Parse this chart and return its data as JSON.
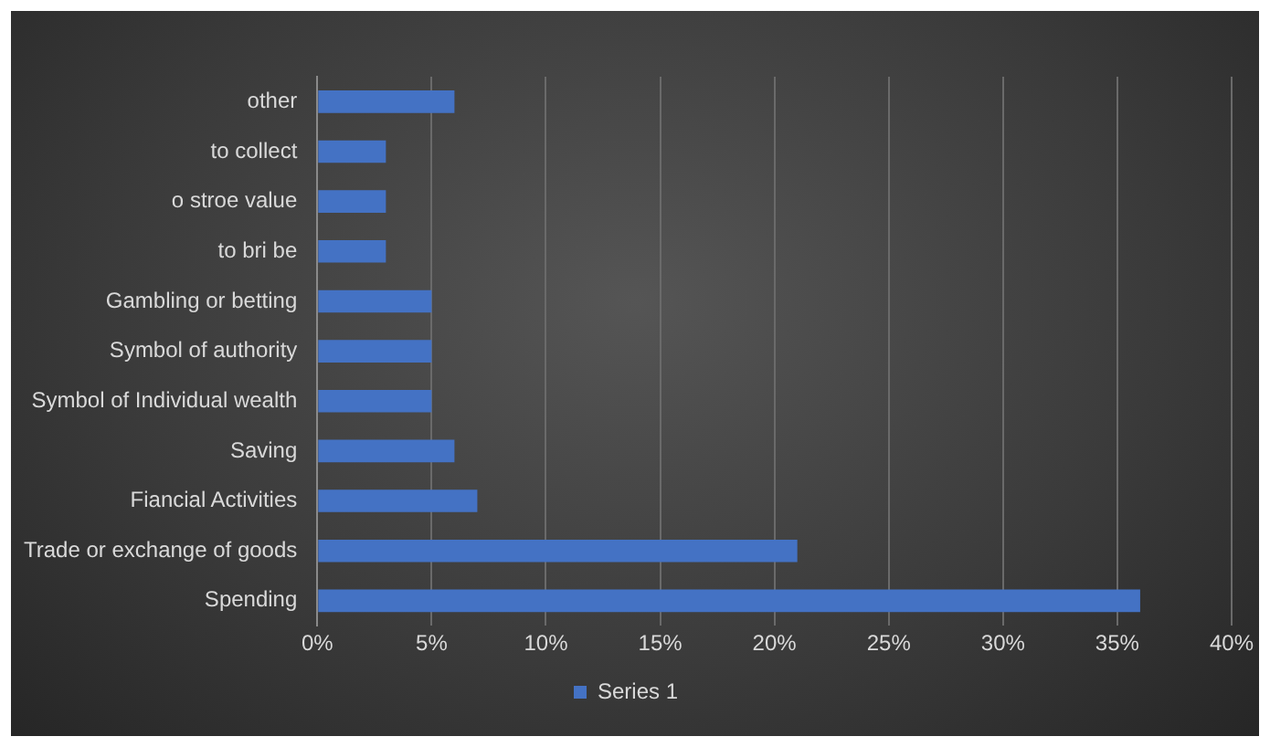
{
  "chart_data": {
    "type": "bar",
    "orientation": "horizontal",
    "categories": [
      "other",
      "to collect",
      "o stroe value",
      "to bri be",
      "Gambling or betting",
      "Symbol of authority",
      "Symbol of Individual wealth",
      "Saving",
      "Fiancial Activities",
      "Trade or exchange of goods",
      "Spending"
    ],
    "series": [
      {
        "name": "Series 1",
        "color": "#4472c4",
        "values": [
          6,
          3,
          3,
          3,
          5,
          5,
          5,
          6,
          7,
          21,
          36
        ]
      }
    ],
    "xlim": [
      0,
      40
    ],
    "xticks": [
      {
        "value": 0,
        "label": "0%"
      },
      {
        "value": 5,
        "label": "5%"
      },
      {
        "value": 10,
        "label": "10%"
      },
      {
        "value": 15,
        "label": "15%"
      },
      {
        "value": 20,
        "label": "20%"
      },
      {
        "value": 25,
        "label": "25%"
      },
      {
        "value": 30,
        "label": "30%"
      },
      {
        "value": 35,
        "label": "35%"
      },
      {
        "value": 40,
        "label": "40%"
      }
    ],
    "grid": "x",
    "legend": "bottom"
  }
}
